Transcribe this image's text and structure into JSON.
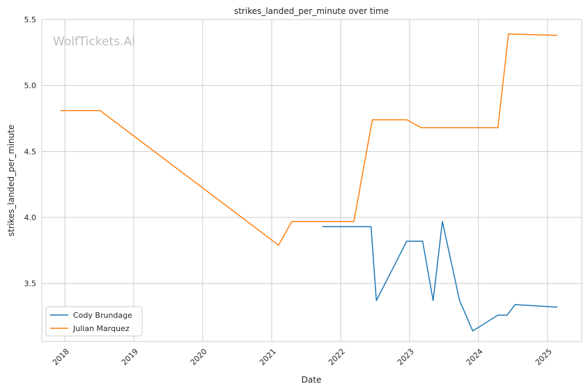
{
  "chart_data": {
    "type": "line",
    "title": "strikes_landed_per_minute over time",
    "xlabel": "Date",
    "ylabel": "strikes_landed_per_minute",
    "watermark": "WolfTickets.AI",
    "xlim": [
      "2017-09-01",
      "2025-07-01"
    ],
    "ylim": [
      3.06,
      5.5
    ],
    "x_ticks": [
      "2018",
      "2019",
      "2020",
      "2021",
      "2022",
      "2023",
      "2024",
      "2025"
    ],
    "y_ticks": [
      "3.5",
      "4.0",
      "4.5",
      "5.0",
      "5.5"
    ],
    "grid": true,
    "legend_position": "lower-left",
    "series": [
      {
        "name": "Cody Brundage",
        "color": "#1f77b4",
        "points": [
          {
            "x": "2021-09-25",
            "y": 3.93
          },
          {
            "x": "2022-06-11",
            "y": 3.93
          },
          {
            "x": "2022-07-09",
            "y": 3.37
          },
          {
            "x": "2022-12-17",
            "y": 3.82
          },
          {
            "x": "2023-03-11",
            "y": 3.82
          },
          {
            "x": "2023-05-06",
            "y": 3.37
          },
          {
            "x": "2023-06-24",
            "y": 3.97
          },
          {
            "x": "2023-09-23",
            "y": 3.37
          },
          {
            "x": "2023-12-02",
            "y": 3.14
          },
          {
            "x": "2024-04-13",
            "y": 3.26
          },
          {
            "x": "2024-06-01",
            "y": 3.26
          },
          {
            "x": "2024-07-13",
            "y": 3.34
          },
          {
            "x": "2025-02-22",
            "y": 3.32
          }
        ]
      },
      {
        "name": "Julian Marquez",
        "color": "#ff7f0e",
        "points": [
          {
            "x": "2017-12-09",
            "y": 4.81
          },
          {
            "x": "2018-07-07",
            "y": 4.81
          },
          {
            "x": "2021-02-06",
            "y": 3.79
          },
          {
            "x": "2021-04-17",
            "y": 3.97
          },
          {
            "x": "2022-03-12",
            "y": 3.97
          },
          {
            "x": "2022-06-18",
            "y": 4.74
          },
          {
            "x": "2022-12-17",
            "y": 4.74
          },
          {
            "x": "2023-03-04",
            "y": 4.68
          },
          {
            "x": "2024-04-13",
            "y": 4.68
          },
          {
            "x": "2024-06-08",
            "y": 5.39
          },
          {
            "x": "2025-02-22",
            "y": 5.38
          }
        ]
      }
    ]
  }
}
